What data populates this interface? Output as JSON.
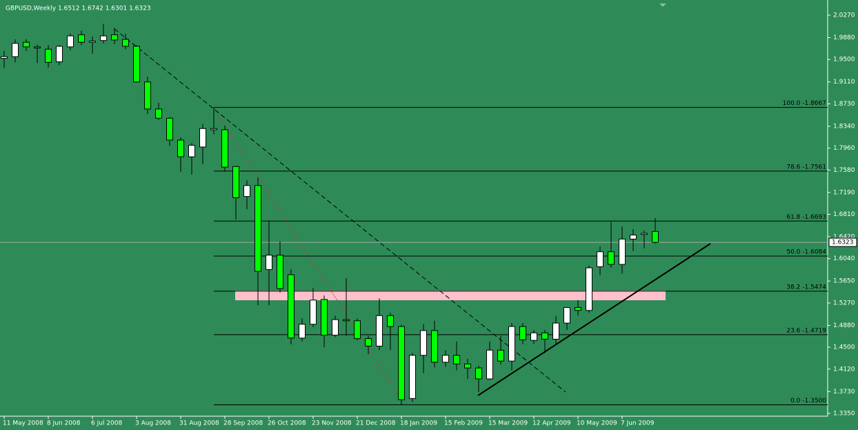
{
  "chart_data": {
    "type": "candlestick",
    "title": "GBPUSD,Weekly  1.6512 1.6742 1.6301 1.6323",
    "categories": [
      "11 May 2008",
      null,
      null,
      null,
      "8 Jun 2008",
      null,
      null,
      null,
      "6 Jul 2008",
      null,
      null,
      null,
      "3 Aug 2008",
      null,
      null,
      null,
      "31 Aug 2008",
      null,
      null,
      null,
      "28 Sep 2008",
      null,
      null,
      null,
      "26 Oct 2008",
      null,
      null,
      null,
      "23 Nov 2008",
      null,
      null,
      null,
      "21 Dec 2008",
      null,
      null,
      null,
      "18 Jan 2009",
      null,
      null,
      null,
      "15 Feb 2009",
      null,
      null,
      null,
      "15 Mar 2009",
      null,
      null,
      null,
      "12 Apr 2009",
      null,
      null,
      null,
      "10 May 2009",
      null,
      null,
      null,
      "7 Jun 2009",
      null,
      null,
      null
    ],
    "open": [
      1.952,
      1.955,
      1.98,
      1.972,
      1.968,
      1.946,
      1.972,
      1.993,
      1.98,
      1.983,
      1.993,
      1.985,
      1.973,
      1.911,
      1.864,
      1.848,
      1.81,
      1.781,
      1.798,
      1.828,
      1.828,
      1.764,
      1.712,
      1.731,
      1.585,
      1.61,
      1.576,
      1.466,
      1.49,
      1.533,
      1.471,
      1.498,
      1.496,
      1.465,
      1.452,
      1.505,
      1.486,
      1.361,
      1.436,
      1.479,
      1.424,
      1.436,
      1.421,
      1.414,
      1.395,
      1.445,
      1.426,
      1.486,
      1.462,
      1.475,
      1.464,
      1.492,
      1.519,
      1.514,
      1.59,
      1.616,
      1.594,
      1.638,
      1.646,
      1.6512
    ],
    "high": [
      1.965,
      1.985,
      1.985,
      1.976,
      1.975,
      1.975,
      1.995,
      2.0,
      1.99,
      2.012,
      2.005,
      1.995,
      1.975,
      1.92,
      1.875,
      1.85,
      1.815,
      1.805,
      1.838,
      1.8667,
      1.835,
      1.765,
      1.74,
      1.745,
      1.67,
      1.634,
      1.585,
      1.5,
      1.553,
      1.54,
      1.505,
      1.57,
      1.5,
      1.47,
      1.535,
      1.51,
      1.489,
      1.44,
      1.49,
      1.496,
      1.445,
      1.46,
      1.43,
      1.418,
      1.46,
      1.47,
      1.492,
      1.492,
      1.48,
      1.48,
      1.504,
      1.52,
      1.532,
      1.592,
      1.625,
      1.668,
      1.66,
      1.655,
      1.653,
      1.6742
    ],
    "low": [
      1.935,
      1.945,
      1.965,
      1.944,
      1.936,
      1.94,
      1.966,
      1.975,
      1.96,
      1.978,
      1.977,
      1.968,
      1.91,
      1.855,
      1.845,
      1.8,
      1.755,
      1.75,
      1.768,
      1.82,
      1.755,
      1.672,
      1.69,
      1.523,
      1.523,
      1.545,
      1.455,
      1.46,
      1.485,
      1.45,
      1.468,
      1.47,
      1.462,
      1.438,
      1.445,
      1.445,
      1.35,
      1.355,
      1.405,
      1.415,
      1.416,
      1.41,
      1.395,
      1.372,
      1.393,
      1.42,
      1.41,
      1.455,
      1.456,
      1.44,
      1.455,
      1.48,
      1.505,
      1.51,
      1.575,
      1.588,
      1.578,
      1.617,
      1.622,
      1.6301
    ],
    "close": [
      1.955,
      1.978,
      1.972,
      1.97,
      1.945,
      1.973,
      1.991,
      1.98,
      1.982,
      1.991,
      1.984,
      1.973,
      1.911,
      1.864,
      1.848,
      1.81,
      1.781,
      1.801,
      1.83,
      1.83,
      1.763,
      1.71,
      1.731,
      1.582,
      1.61,
      1.552,
      1.466,
      1.49,
      1.532,
      1.471,
      1.498,
      1.496,
      1.465,
      1.452,
      1.505,
      1.486,
      1.359,
      1.436,
      1.479,
      1.424,
      1.436,
      1.421,
      1.414,
      1.395,
      1.445,
      1.426,
      1.486,
      1.463,
      1.475,
      1.464,
      1.492,
      1.519,
      1.514,
      1.588,
      1.616,
      1.594,
      1.638,
      1.645,
      1.648,
      1.6323
    ],
    "up_color": "#ffffff",
    "down_color": "#00ff00",
    "ylim": [
      1.3302,
      2.0534
    ],
    "yticks": [
      {
        "value": 2.027,
        "label": "2.0270"
      },
      {
        "value": 1.988,
        "label": "1.9880"
      },
      {
        "value": 1.95,
        "label": "1.9500"
      },
      {
        "value": 1.911,
        "label": "1.9110"
      },
      {
        "value": 1.873,
        "label": "1.8730"
      },
      {
        "value": 1.834,
        "label": "1.8340"
      },
      {
        "value": 1.796,
        "label": "1.7960"
      },
      {
        "value": 1.758,
        "label": "1.7580"
      },
      {
        "value": 1.719,
        "label": "1.7190"
      },
      {
        "value": 1.681,
        "label": "1.6810"
      },
      {
        "value": 1.642,
        "label": "1.6420"
      },
      {
        "value": 1.604,
        "label": "1.6040"
      },
      {
        "value": 1.565,
        "label": "1.5650"
      },
      {
        "value": 1.527,
        "label": "1.5270"
      },
      {
        "value": 1.488,
        "label": "1.4880"
      },
      {
        "value": 1.45,
        "label": "1.4500"
      },
      {
        "value": 1.412,
        "label": "1.4120"
      },
      {
        "value": 1.373,
        "label": "1.3730"
      },
      {
        "value": 1.335,
        "label": "1.3350"
      }
    ],
    "fib_levels": [
      {
        "value": 1.8667,
        "label": "100.0 -1.8667"
      },
      {
        "value": 1.7561,
        "label": "78.6 -1.7561"
      },
      {
        "value": 1.6693,
        "label": "61.8 -1.6693"
      },
      {
        "value": 1.6084,
        "label": "50.0 -1.6084"
      },
      {
        "value": 1.5474,
        "label": "38.2 -1.5474"
      },
      {
        "value": 1.4719,
        "label": "23.6 -1.4719"
      },
      {
        "value": 1.35,
        "label": "0.0 -1.3500"
      }
    ],
    "current_price": {
      "value": 1.6323,
      "label": "1.6323"
    }
  }
}
